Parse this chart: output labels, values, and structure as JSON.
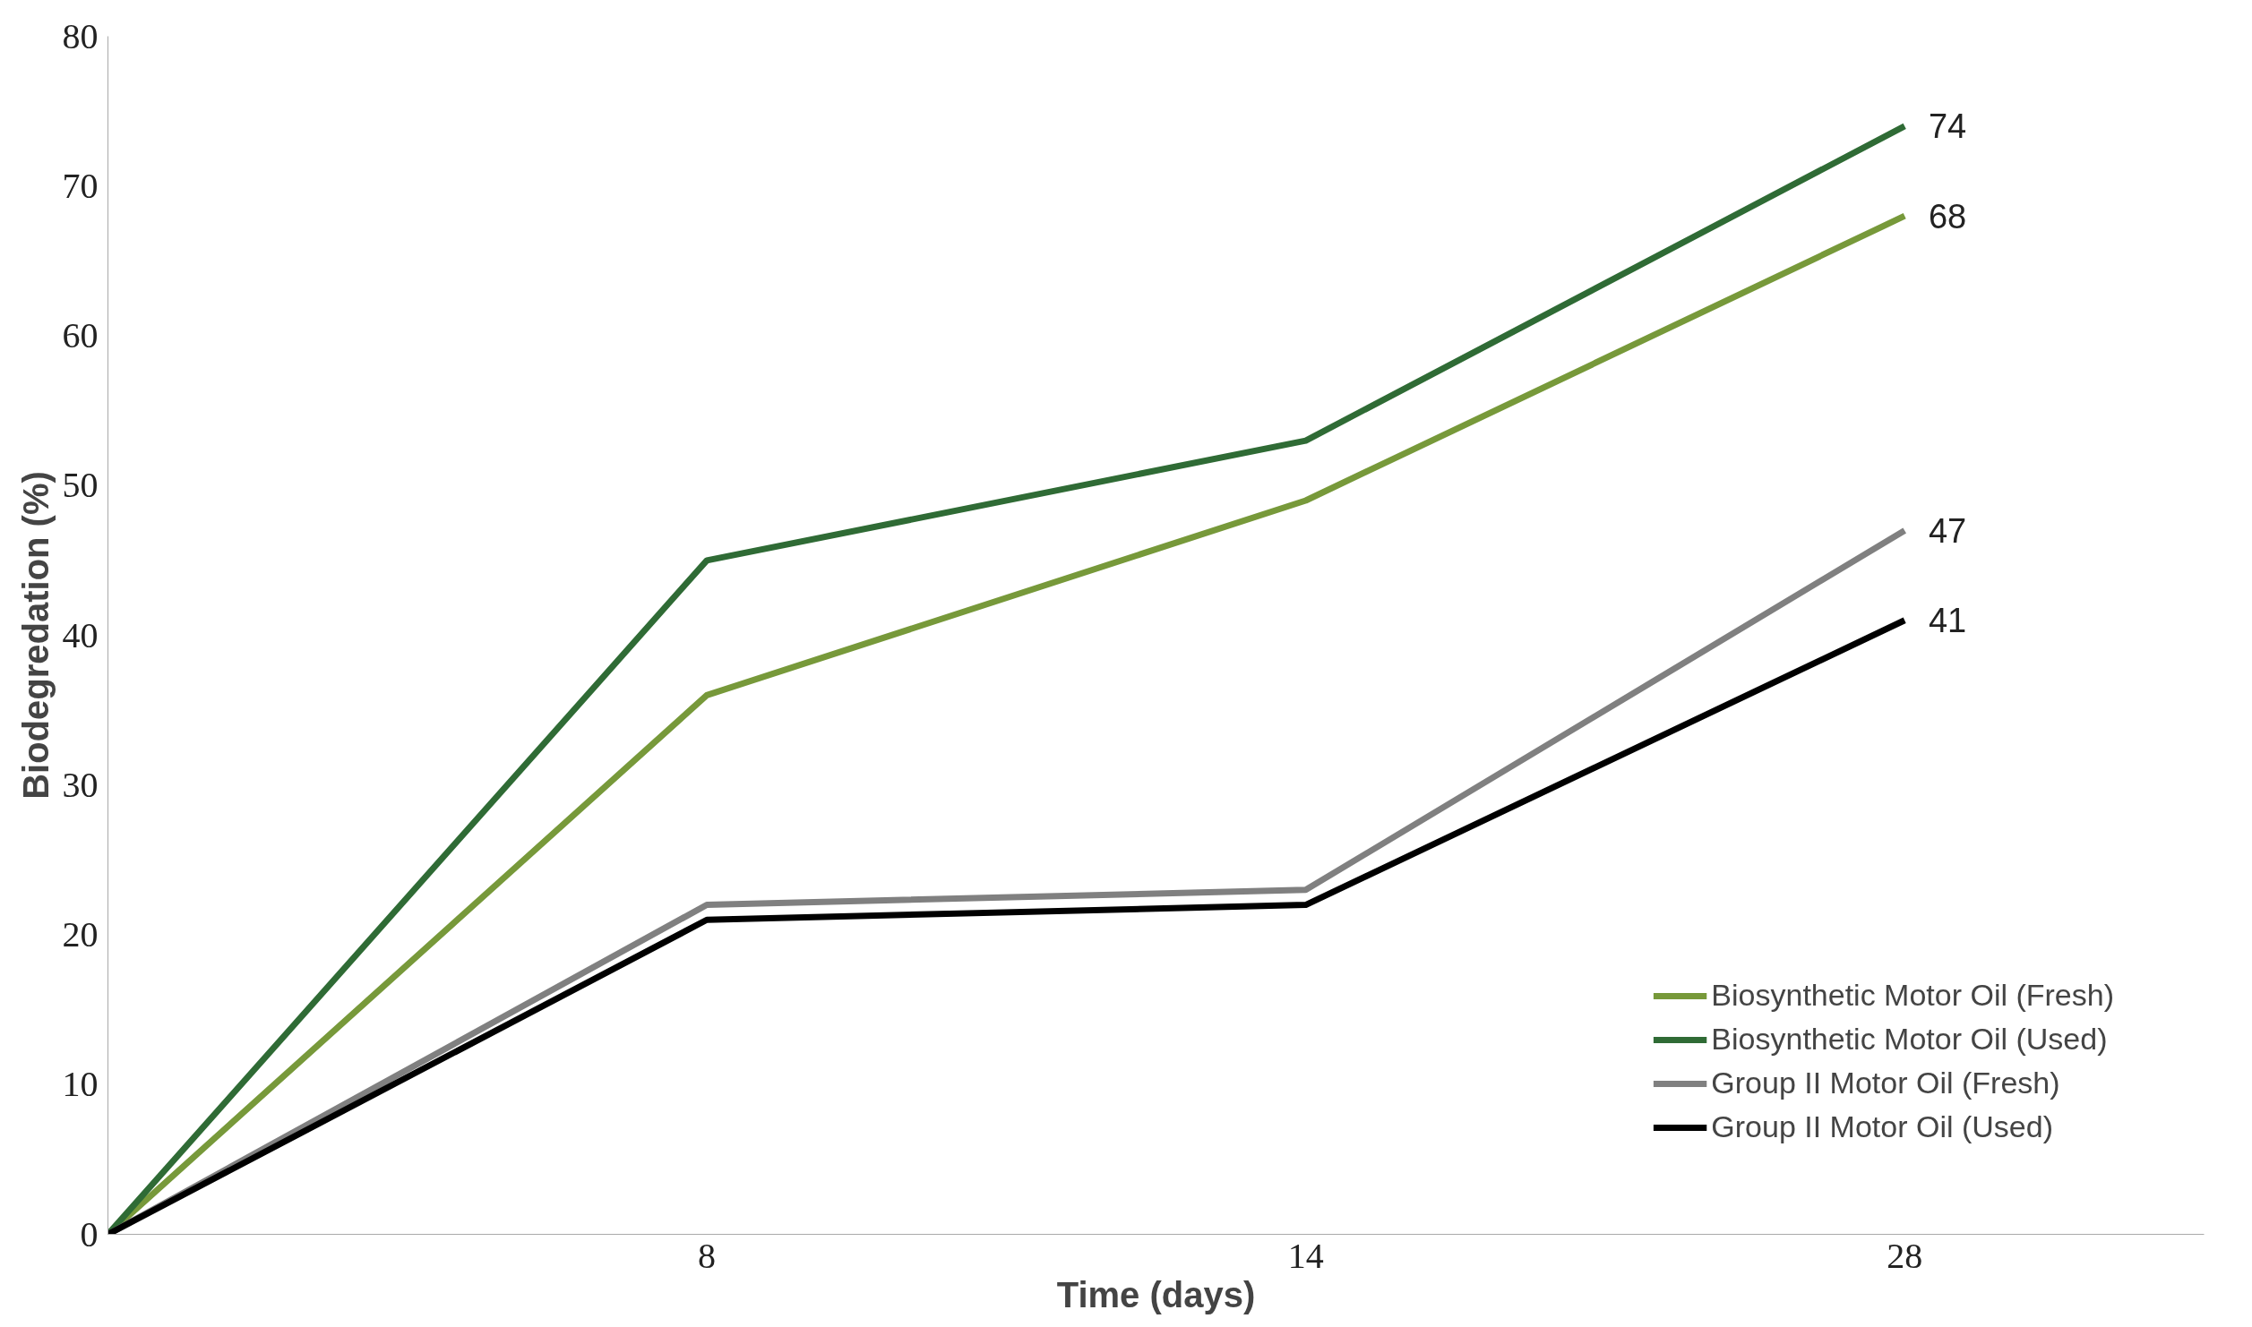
{
  "chart_data": {
    "type": "line",
    "xlabel": "Time (days)",
    "ylabel": "Biodegredation (%)",
    "categories": [
      null,
      "8",
      "14",
      "28"
    ],
    "ylim": [
      0,
      80
    ],
    "yticks": [
      0,
      10,
      20,
      30,
      40,
      50,
      60,
      70,
      80
    ],
    "grid": false,
    "legend": "bottom right",
    "marker": "none",
    "line_style": "solid",
    "series": [
      {
        "name": "Biosynthetic Motor Oil (Fresh)",
        "color": "#77993a",
        "values": [
          0,
          36,
          49,
          68
        ],
        "value_labels": [
          null,
          null,
          null,
          "68"
        ]
      },
      {
        "name": "Biosynthetic Motor Oil (Used)",
        "color": "#2f6b35",
        "values": [
          0,
          45,
          53,
          74
        ],
        "value_labels": [
          null,
          null,
          null,
          "74"
        ]
      },
      {
        "name": "Group II Motor Oil (Fresh)",
        "color": "#808080",
        "values": [
          0,
          22,
          23,
          47
        ],
        "value_labels": [
          null,
          null,
          null,
          "47"
        ]
      },
      {
        "name": "Group II Motor Oil (Used)",
        "color": "#000000",
        "values": [
          0,
          21,
          22,
          41
        ],
        "value_labels": [
          null,
          null,
          null,
          "41"
        ]
      }
    ]
  }
}
